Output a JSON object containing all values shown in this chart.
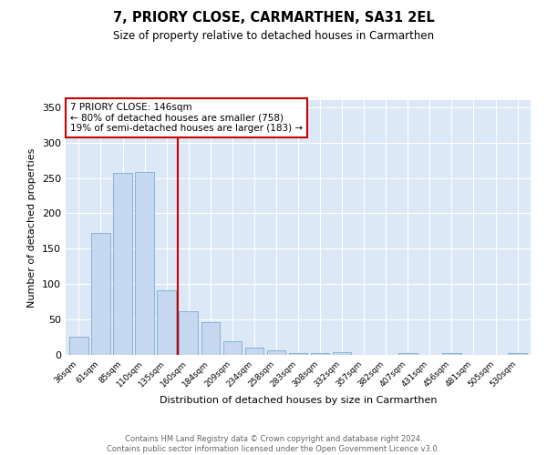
{
  "title": "7, PRIORY CLOSE, CARMARTHEN, SA31 2EL",
  "subtitle": "Size of property relative to detached houses in Carmarthen",
  "xlabel": "Distribution of detached houses by size in Carmarthen",
  "ylabel": "Number of detached properties",
  "categories": [
    "36sqm",
    "61sqm",
    "85sqm",
    "110sqm",
    "135sqm",
    "160sqm",
    "184sqm",
    "209sqm",
    "234sqm",
    "258sqm",
    "283sqm",
    "308sqm",
    "332sqm",
    "357sqm",
    "382sqm",
    "407sqm",
    "431sqm",
    "456sqm",
    "481sqm",
    "505sqm",
    "530sqm"
  ],
  "values": [
    26,
    172,
    257,
    259,
    91,
    62,
    46,
    19,
    10,
    6,
    3,
    3,
    4,
    0,
    0,
    3,
    0,
    3,
    0,
    0,
    2
  ],
  "bar_color": "#c5d8f0",
  "bar_edge_color": "#7aadd4",
  "background_color": "#dce8f5",
  "grid_color": "#ffffff",
  "vline_x": 4.5,
  "vline_color": "#cc0000",
  "annotation_text": "7 PRIORY CLOSE: 146sqm\n← 80% of detached houses are smaller (758)\n19% of semi-detached houses are larger (183) →",
  "annotation_box_color": "#ffffff",
  "annotation_box_edge": "#cc0000",
  "footnote": "Contains HM Land Registry data © Crown copyright and database right 2024.\nContains public sector information licensed under the Open Government Licence v3.0.",
  "ylim": [
    0,
    360
  ],
  "yticks": [
    0,
    50,
    100,
    150,
    200,
    250,
    300,
    350
  ],
  "fig_bg": "#ffffff"
}
